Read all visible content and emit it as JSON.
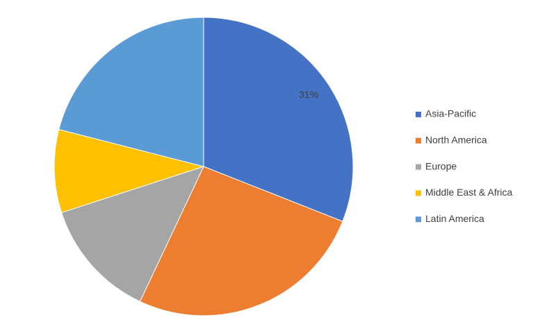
{
  "chart_data": {
    "type": "pie",
    "categories": [
      "Asia-Pacific",
      "North America",
      "Europe",
      "Middle East & Africa",
      "Latin America"
    ],
    "values": [
      31,
      26,
      13,
      9,
      21
    ],
    "value_labels": [
      "31%",
      null,
      null,
      null,
      null
    ],
    "colors": [
      "#4472c4",
      "#ed7d31",
      "#a5a5a5",
      "#ffc000",
      "#5b9bd5"
    ],
    "legend": "right"
  }
}
